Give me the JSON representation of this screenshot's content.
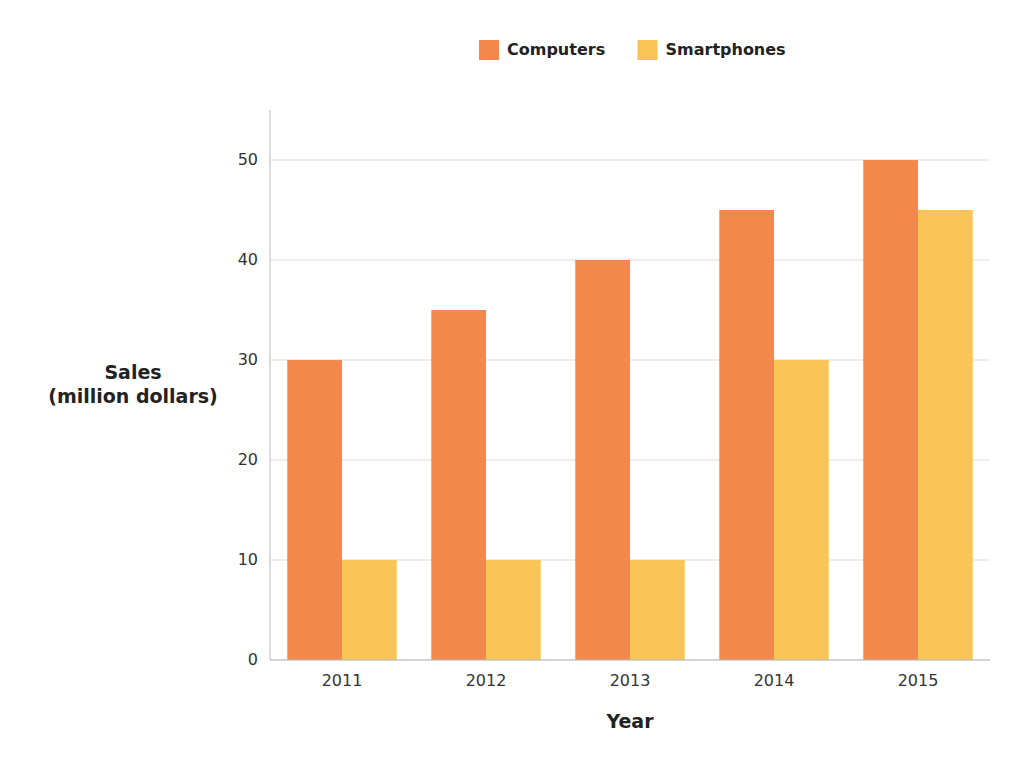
{
  "chart_data": {
    "type": "bar",
    "x_label": "Year",
    "y_label": "Sales\n(million dollars)",
    "categories": [
      "2011",
      "2012",
      "2013",
      "2014",
      "2015"
    ],
    "series": [
      {
        "name": "Computers",
        "color": "#F4874B",
        "values": [
          30,
          35,
          40,
          45,
          50
        ]
      },
      {
        "name": "Smartphones",
        "color": "#F9C457",
        "values": [
          10,
          10,
          10,
          30,
          45
        ]
      }
    ],
    "ylim": [
      0,
      55
    ],
    "yticks": [
      0,
      10,
      20,
      30,
      40,
      50
    ],
    "grid": true,
    "legend": "top"
  }
}
